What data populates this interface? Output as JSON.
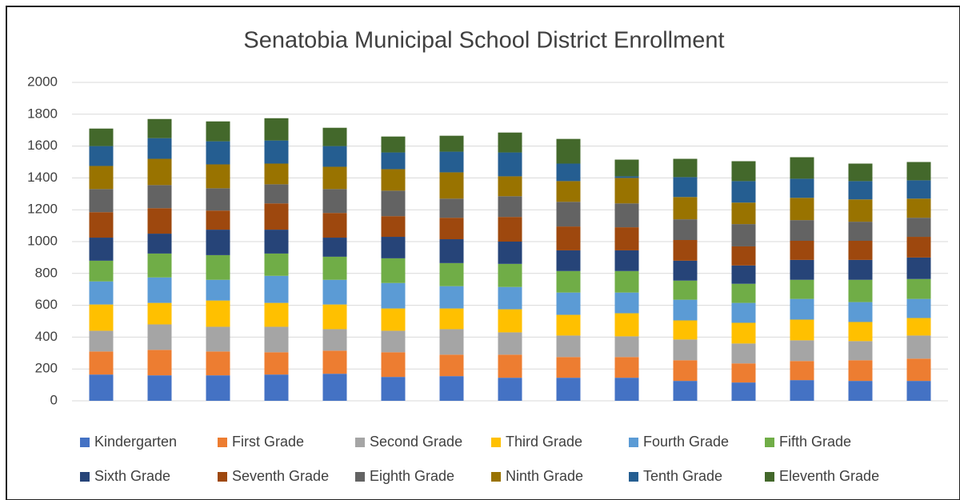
{
  "chart_data": {
    "type": "stacked_bar",
    "title": "Senatobia Municipal School District Enrollment",
    "categories": [
      null,
      null,
      null,
      null,
      null,
      null,
      null,
      null,
      null,
      null,
      null,
      null,
      null,
      null,
      null
    ],
    "ylim": [
      0,
      2000
    ],
    "yticks": [
      0,
      200,
      400,
      600,
      800,
      1000,
      1200,
      1400,
      1600,
      1800,
      2000
    ],
    "grid": true,
    "legend": "bottom",
    "series": [
      {
        "name": "Kindergarten",
        "color": "#4472c4",
        "values": [
          165,
          160,
          160,
          165,
          170,
          150,
          155,
          145,
          145,
          145,
          125,
          115,
          130,
          125,
          125
        ]
      },
      {
        "name": "First Grade",
        "color": "#ed7d31",
        "values": [
          145,
          160,
          150,
          140,
          145,
          155,
          135,
          145,
          130,
          130,
          130,
          120,
          120,
          130,
          140
        ]
      },
      {
        "name": "Second Grade",
        "color": "#a5a5a5",
        "values": [
          130,
          160,
          155,
          160,
          135,
          135,
          160,
          140,
          135,
          130,
          130,
          125,
          130,
          120,
          145
        ]
      },
      {
        "name": "Third Grade",
        "color": "#ffc000",
        "values": [
          165,
          135,
          165,
          150,
          155,
          140,
          130,
          145,
          130,
          145,
          120,
          130,
          130,
          120,
          110
        ]
      },
      {
        "name": "Fourth Grade",
        "color": "#5b9bd5",
        "values": [
          145,
          160,
          130,
          170,
          155,
          160,
          140,
          140,
          140,
          130,
          130,
          125,
          130,
          125,
          120
        ]
      },
      {
        "name": "Fifth Grade",
        "color": "#70ad47",
        "values": [
          130,
          150,
          155,
          140,
          145,
          155,
          145,
          145,
          135,
          135,
          120,
          120,
          120,
          140,
          125
        ]
      },
      {
        "name": "Sixth Grade",
        "color": "#264478",
        "values": [
          145,
          125,
          160,
          150,
          120,
          135,
          150,
          140,
          130,
          130,
          125,
          115,
          125,
          125,
          135
        ]
      },
      {
        "name": "Seventh Grade",
        "color": "#9e480e",
        "values": [
          160,
          160,
          120,
          165,
          155,
          130,
          135,
          155,
          150,
          145,
          130,
          120,
          120,
          120,
          130
        ]
      },
      {
        "name": "Eighth Grade",
        "color": "#636363",
        "values": [
          145,
          145,
          140,
          120,
          150,
          160,
          120,
          130,
          155,
          150,
          130,
          140,
          130,
          120,
          120
        ]
      },
      {
        "name": "Ninth Grade",
        "color": "#997300",
        "values": [
          145,
          165,
          150,
          130,
          140,
          135,
          165,
          125,
          130,
          160,
          140,
          135,
          140,
          140,
          120
        ]
      },
      {
        "name": "Tenth Grade",
        "color": "#255e91",
        "values": [
          125,
          130,
          145,
          145,
          130,
          105,
          130,
          150,
          110,
          10,
          125,
          135,
          120,
          115,
          115
        ]
      },
      {
        "name": "Eleventh Grade",
        "color": "#43682b",
        "values": [
          110,
          120,
          125,
          140,
          115,
          100,
          100,
          125,
          155,
          105,
          115,
          125,
          135,
          110,
          115
        ]
      }
    ]
  }
}
